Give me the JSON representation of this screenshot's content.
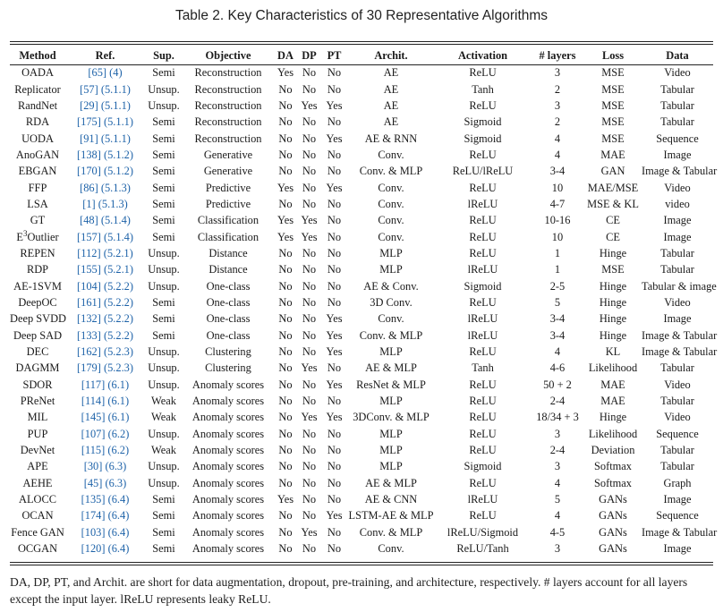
{
  "caption": "Table 2.  Key Characteristics of 30 Representative Algorithms",
  "headers": [
    "Method",
    "Ref.",
    "Sup.",
    "Objective",
    "DA",
    "DP",
    "PT",
    "Archit.",
    "Activation",
    "# layers",
    "Loss",
    "Data"
  ],
  "rows": [
    {
      "method": "OADA",
      "ref": "[65]",
      "sec": "(4)",
      "sup": "Semi",
      "objective": "Reconstruction",
      "da": "Yes",
      "dp": "No",
      "pt": "No",
      "archit": "AE",
      "activation": "ReLU",
      "layers": "3",
      "loss": "MSE",
      "data": "Video"
    },
    {
      "method": "Replicator",
      "ref": "[57]",
      "sec": "(5.1.1)",
      "sup": "Unsup.",
      "objective": "Reconstruction",
      "da": "No",
      "dp": "No",
      "pt": "No",
      "archit": "AE",
      "activation": "Tanh",
      "layers": "2",
      "loss": "MSE",
      "data": "Tabular"
    },
    {
      "method": "RandNet",
      "ref": "[29]",
      "sec": "(5.1.1)",
      "sup": "Unsup.",
      "objective": "Reconstruction",
      "da": "No",
      "dp": "Yes",
      "pt": "Yes",
      "archit": "AE",
      "activation": "ReLU",
      "layers": "3",
      "loss": "MSE",
      "data": "Tabular"
    },
    {
      "method": "RDA",
      "ref": "[175]",
      "sec": "(5.1.1)",
      "sup": "Semi",
      "objective": "Reconstruction",
      "da": "No",
      "dp": "No",
      "pt": "No",
      "archit": "AE",
      "activation": "Sigmoid",
      "layers": "2",
      "loss": "MSE",
      "data": "Tabular"
    },
    {
      "method": "UODA",
      "ref": "[91]",
      "sec": "(5.1.1)",
      "sup": "Semi",
      "objective": "Reconstruction",
      "da": "No",
      "dp": "No",
      "pt": "Yes",
      "archit": "AE & RNN",
      "activation": "Sigmoid",
      "layers": "4",
      "loss": "MSE",
      "data": "Sequence"
    },
    {
      "method": "AnoGAN",
      "ref": "[138]",
      "sec": "(5.1.2)",
      "sup": "Semi",
      "objective": "Generative",
      "da": "No",
      "dp": "No",
      "pt": "No",
      "archit": "Conv.",
      "activation": "ReLU",
      "layers": "4",
      "loss": "MAE",
      "data": "Image"
    },
    {
      "method": "EBGAN",
      "ref": "[170]",
      "sec": "(5.1.2)",
      "sup": "Semi",
      "objective": "Generative",
      "da": "No",
      "dp": "No",
      "pt": "No",
      "archit": "Conv. & MLP",
      "activation": "ReLU/lReLU",
      "layers": "3-4",
      "loss": "GAN",
      "data": "Image & Tabular"
    },
    {
      "method": "FFP",
      "ref": "[86]",
      "sec": "(5.1.3)",
      "sup": "Semi",
      "objective": "Predictive",
      "da": "Yes",
      "dp": "No",
      "pt": "Yes",
      "archit": "Conv.",
      "activation": "ReLU",
      "layers": "10",
      "loss": "MAE/MSE",
      "data": "Video"
    },
    {
      "method": "LSA",
      "ref": "[1]",
      "sec": "(5.1.3)",
      "sup": "Semi",
      "objective": "Predictive",
      "da": "No",
      "dp": "No",
      "pt": "No",
      "archit": "Conv.",
      "activation": "lReLU",
      "layers": "4-7",
      "loss": "MSE & KL",
      "data": "video"
    },
    {
      "method": "GT",
      "ref": "[48]",
      "sec": "(5.1.4)",
      "sup": "Semi",
      "objective": "Classification",
      "da": "Yes",
      "dp": "Yes",
      "pt": "No",
      "archit": "Conv.",
      "activation": "ReLU",
      "layers": "10-16",
      "loss": "CE",
      "data": "Image"
    },
    {
      "method": "E",
      "method_sup": "3",
      "method_tail": "Outlier",
      "ref": "[157]",
      "sec": "(5.1.4)",
      "sup": "Semi",
      "objective": "Classification",
      "da": "Yes",
      "dp": "Yes",
      "pt": "No",
      "archit": "Conv.",
      "activation": "ReLU",
      "layers": "10",
      "loss": "CE",
      "data": "Image"
    },
    {
      "method": "REPEN",
      "ref": "[112]",
      "sec": "(5.2.1)",
      "sup": "Unsup.",
      "objective": "Distance",
      "da": "No",
      "dp": "No",
      "pt": "No",
      "archit": "MLP",
      "activation": "ReLU",
      "layers": "1",
      "loss": "Hinge",
      "data": "Tabular"
    },
    {
      "method": "RDP",
      "ref": "[155]",
      "sec": "(5.2.1)",
      "sup": "Unsup.",
      "objective": "Distance",
      "da": "No",
      "dp": "No",
      "pt": "No",
      "archit": "MLP",
      "activation": "lReLU",
      "layers": "1",
      "loss": "MSE",
      "data": "Tabular"
    },
    {
      "method": "AE-1SVM",
      "ref": "[104]",
      "sec": "(5.2.2)",
      "sup": "Unsup.",
      "objective": "One-class",
      "da": "No",
      "dp": "No",
      "pt": "No",
      "archit": "AE & Conv.",
      "activation": "Sigmoid",
      "layers": "2-5",
      "loss": "Hinge",
      "data": "Tabular & image"
    },
    {
      "method": "DeepOC",
      "ref": "[161]",
      "sec": "(5.2.2)",
      "sup": "Semi",
      "objective": "One-class",
      "da": "No",
      "dp": "No",
      "pt": "No",
      "archit": "3D Conv.",
      "activation": "ReLU",
      "layers": "5",
      "loss": "Hinge",
      "data": "Video"
    },
    {
      "method": "Deep SVDD",
      "ref": "[132]",
      "sec": "(5.2.2)",
      "sup": "Semi",
      "objective": "One-class",
      "da": "No",
      "dp": "No",
      "pt": "Yes",
      "archit": "Conv.",
      "activation": "lReLU",
      "layers": "3-4",
      "loss": "Hinge",
      "data": "Image"
    },
    {
      "method": "Deep SAD",
      "ref": "[133]",
      "sec": "(5.2.2)",
      "sup": "Semi",
      "objective": "One-class",
      "da": "No",
      "dp": "No",
      "pt": "Yes",
      "archit": "Conv. & MLP",
      "activation": "lReLU",
      "layers": "3-4",
      "loss": "Hinge",
      "data": "Image & Tabular"
    },
    {
      "method": "DEC",
      "ref": "[162]",
      "sec": "(5.2.3)",
      "sup": "Unsup.",
      "objective": "Clustering",
      "da": "No",
      "dp": "No",
      "pt": "Yes",
      "archit": "MLP",
      "activation": "ReLU",
      "layers": "4",
      "loss": "KL",
      "data": "Image & Tabular"
    },
    {
      "method": "DAGMM",
      "ref": "[179]",
      "sec": "(5.2.3)",
      "sup": "Unsup.",
      "objective": "Clustering",
      "da": "No",
      "dp": "Yes",
      "pt": "No",
      "archit": "AE & MLP",
      "activation": "Tanh",
      "layers": "4-6",
      "loss": "Likelihood",
      "data": "Tabular"
    },
    {
      "method": "SDOR",
      "ref": "[117]",
      "sec": "(6.1)",
      "sup": "Unsup.",
      "objective": "Anomaly scores",
      "da": "No",
      "dp": "No",
      "pt": "Yes",
      "archit": "ResNet & MLP",
      "activation": "ReLU",
      "layers": "50 + 2",
      "loss": "MAE",
      "data": "Video"
    },
    {
      "method": "PReNet",
      "ref": "[114]",
      "sec": "(6.1)",
      "sup": "Weak",
      "objective": "Anomaly scores",
      "da": "No",
      "dp": "No",
      "pt": "No",
      "archit": "MLP",
      "activation": "ReLU",
      "layers": "2-4",
      "loss": "MAE",
      "data": "Tabular"
    },
    {
      "method": "MIL",
      "ref": "[145]",
      "sec": "(6.1)",
      "sup": "Weak",
      "objective": "Anomaly scores",
      "da": "No",
      "dp": "Yes",
      "pt": "Yes",
      "archit": "3DConv. & MLP",
      "activation": "ReLU",
      "layers": "18/34 + 3",
      "loss": "Hinge",
      "data": "Video"
    },
    {
      "method": "PUP",
      "ref": "[107]",
      "sec": "(6.2)",
      "sup": "Unsup.",
      "objective": "Anomaly scores",
      "da": "No",
      "dp": "No",
      "pt": "No",
      "archit": "MLP",
      "activation": "ReLU",
      "layers": "3",
      "loss": "Likelihood",
      "data": "Sequence"
    },
    {
      "method": "DevNet",
      "ref": "[115]",
      "sec": "(6.2)",
      "sup": "Weak",
      "objective": "Anomaly scores",
      "da": "No",
      "dp": "No",
      "pt": "No",
      "archit": "MLP",
      "activation": "ReLU",
      "layers": "2-4",
      "loss": "Deviation",
      "data": "Tabular"
    },
    {
      "method": "APE",
      "ref": "[30]",
      "sec": "(6.3)",
      "sup": "Unsup.",
      "objective": "Anomaly scores",
      "da": "No",
      "dp": "No",
      "pt": "No",
      "archit": "MLP",
      "activation": "Sigmoid",
      "layers": "3",
      "loss": "Softmax",
      "data": "Tabular"
    },
    {
      "method": "AEHE",
      "ref": "[45]",
      "sec": "(6.3)",
      "sup": "Unsup.",
      "objective": "Anomaly scores",
      "da": "No",
      "dp": "No",
      "pt": "No",
      "archit": "AE & MLP",
      "activation": "ReLU",
      "layers": "4",
      "loss": "Softmax",
      "data": "Graph"
    },
    {
      "method": "ALOCC",
      "ref": "[135]",
      "sec": "(6.4)",
      "sup": "Semi",
      "objective": "Anomaly scores",
      "da": "Yes",
      "dp": "No",
      "pt": "No",
      "archit": "AE & CNN",
      "activation": "lReLU",
      "layers": "5",
      "loss": "GANs",
      "data": "Image"
    },
    {
      "method": "OCAN",
      "ref": "[174]",
      "sec": "(6.4)",
      "sup": "Semi",
      "objective": "Anomaly scores",
      "da": "No",
      "dp": "No",
      "pt": "Yes",
      "archit": "LSTM-AE & MLP",
      "activation": "ReLU",
      "layers": "4",
      "loss": "GANs",
      "data": "Sequence"
    },
    {
      "method": "Fence GAN",
      "ref": "[103]",
      "sec": "(6.4)",
      "sup": "Semi",
      "objective": "Anomaly scores",
      "da": "No",
      "dp": "Yes",
      "pt": "No",
      "archit": "Conv. & MLP",
      "activation": "lReLU/Sigmoid",
      "layers": "4-5",
      "loss": "GANs",
      "data": "Image & Tabular"
    },
    {
      "method": "OCGAN",
      "ref": "[120]",
      "sec": "(6.4)",
      "sup": "Semi",
      "objective": "Anomaly scores",
      "da": "No",
      "dp": "No",
      "pt": "No",
      "archit": "Conv.",
      "activation": "ReLU/Tanh",
      "layers": "3",
      "loss": "GANs",
      "data": "Image"
    }
  ],
  "footnote": "DA, DP, PT, and Archit. are short for data augmentation, dropout, pre-training, and architecture, respectively. # layers account for all layers except the input layer. lReLU represents leaky ReLU.",
  "colors": {
    "ref_link": "#1d62a8",
    "text": "#1a1a1a"
  }
}
